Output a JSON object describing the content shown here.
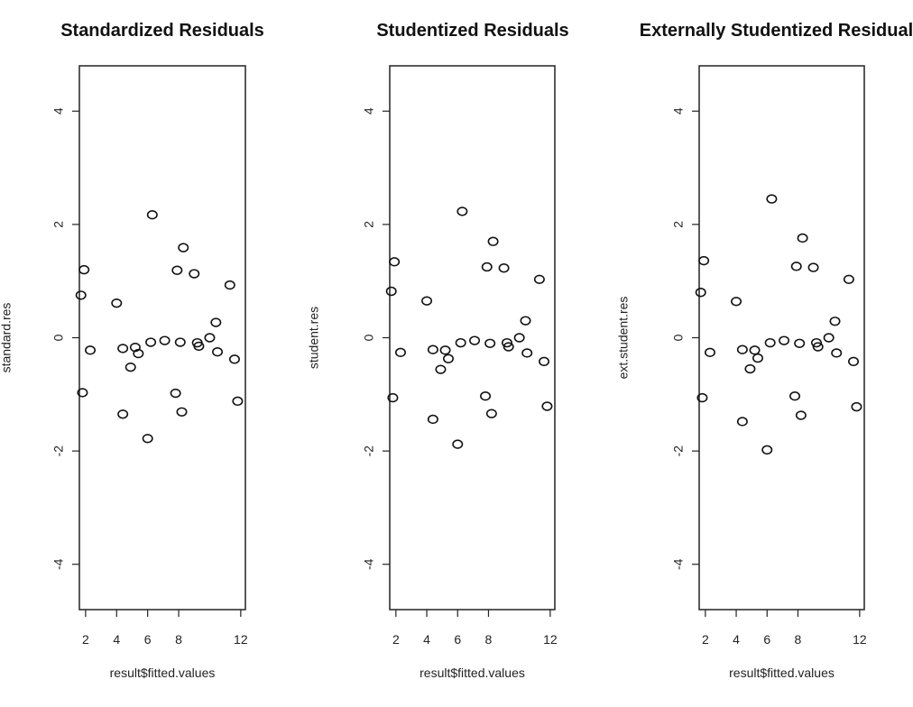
{
  "chart_data": [
    {
      "type": "scatter",
      "title": "Standardized Residuals",
      "xlabel": "result$fitted.values",
      "ylabel": "standard.res",
      "xlim": [
        1.6,
        12.3
      ],
      "ylim": [
        -4.8,
        4.8
      ],
      "xticks": [
        2,
        4,
        6,
        8,
        12
      ],
      "yticks": [
        -4,
        -2,
        0,
        2,
        4
      ],
      "grid": false,
      "x": [
        1.7,
        1.8,
        1.9,
        2.3,
        4.0,
        4.4,
        4.4,
        4.9,
        5.2,
        5.4,
        6.0,
        6.2,
        6.3,
        7.1,
        7.8,
        7.9,
        8.1,
        8.2,
        8.3,
        9.0,
        9.2,
        9.3,
        10.0,
        10.4,
        10.5,
        11.3,
        11.6,
        11.8
      ],
      "y": [
        0.75,
        -0.97,
        1.2,
        -0.22,
        0.61,
        -0.19,
        -1.35,
        -0.52,
        -0.17,
        -0.28,
        -1.78,
        -0.08,
        2.17,
        -0.05,
        -0.98,
        1.19,
        -0.08,
        -1.31,
        1.59,
        1.13,
        -0.09,
        -0.15,
        0.0,
        0.27,
        -0.25,
        0.93,
        -0.38,
        -1.12
      ]
    },
    {
      "type": "scatter",
      "title": "Studentized Residuals",
      "xlabel": "result$fitted.values",
      "ylabel": "student.res",
      "xlim": [
        1.6,
        12.3
      ],
      "ylim": [
        -4.8,
        4.8
      ],
      "xticks": [
        2,
        4,
        6,
        8,
        12
      ],
      "yticks": [
        -4,
        -2,
        0,
        2,
        4
      ],
      "grid": false,
      "x": [
        1.7,
        1.8,
        1.9,
        2.3,
        4.0,
        4.4,
        4.4,
        4.9,
        5.2,
        5.4,
        6.0,
        6.2,
        6.3,
        7.1,
        7.8,
        7.9,
        8.1,
        8.2,
        8.3,
        9.0,
        9.2,
        9.3,
        10.0,
        10.4,
        10.5,
        11.3,
        11.6,
        11.8
      ],
      "y": [
        0.82,
        -1.06,
        1.34,
        -0.26,
        0.65,
        -0.21,
        -1.44,
        -0.56,
        -0.22,
        -0.37,
        -1.88,
        -0.09,
        2.23,
        -0.05,
        -1.03,
        1.25,
        -0.1,
        -1.34,
        1.7,
        1.23,
        -0.09,
        -0.16,
        0.0,
        0.3,
        -0.27,
        1.03,
        -0.42,
        -1.21
      ]
    },
    {
      "type": "scatter",
      "title": "Externally Studentized Residuals",
      "xlabel": "result$fitted.values",
      "ylabel": "ext.student.res",
      "xlim": [
        1.6,
        12.3
      ],
      "ylim": [
        -4.8,
        4.8
      ],
      "xticks": [
        2,
        4,
        6,
        8,
        12
      ],
      "yticks": [
        -4,
        -2,
        0,
        2,
        4
      ],
      "grid": false,
      "x": [
        1.7,
        1.8,
        1.9,
        2.3,
        4.0,
        4.4,
        4.4,
        4.9,
        5.2,
        5.4,
        6.0,
        6.2,
        6.3,
        7.1,
        7.8,
        7.9,
        8.1,
        8.2,
        8.3,
        9.0,
        9.2,
        9.3,
        10.0,
        10.4,
        10.5,
        11.3,
        11.6,
        11.8
      ],
      "y": [
        0.8,
        -1.06,
        1.36,
        -0.26,
        0.64,
        -0.21,
        -1.48,
        -0.55,
        -0.22,
        -0.36,
        -1.98,
        -0.09,
        2.45,
        -0.05,
        -1.03,
        1.26,
        -0.1,
        -1.37,
        1.76,
        1.24,
        -0.09,
        -0.16,
        0.0,
        0.29,
        -0.27,
        1.03,
        -0.42,
        -1.22
      ]
    }
  ]
}
